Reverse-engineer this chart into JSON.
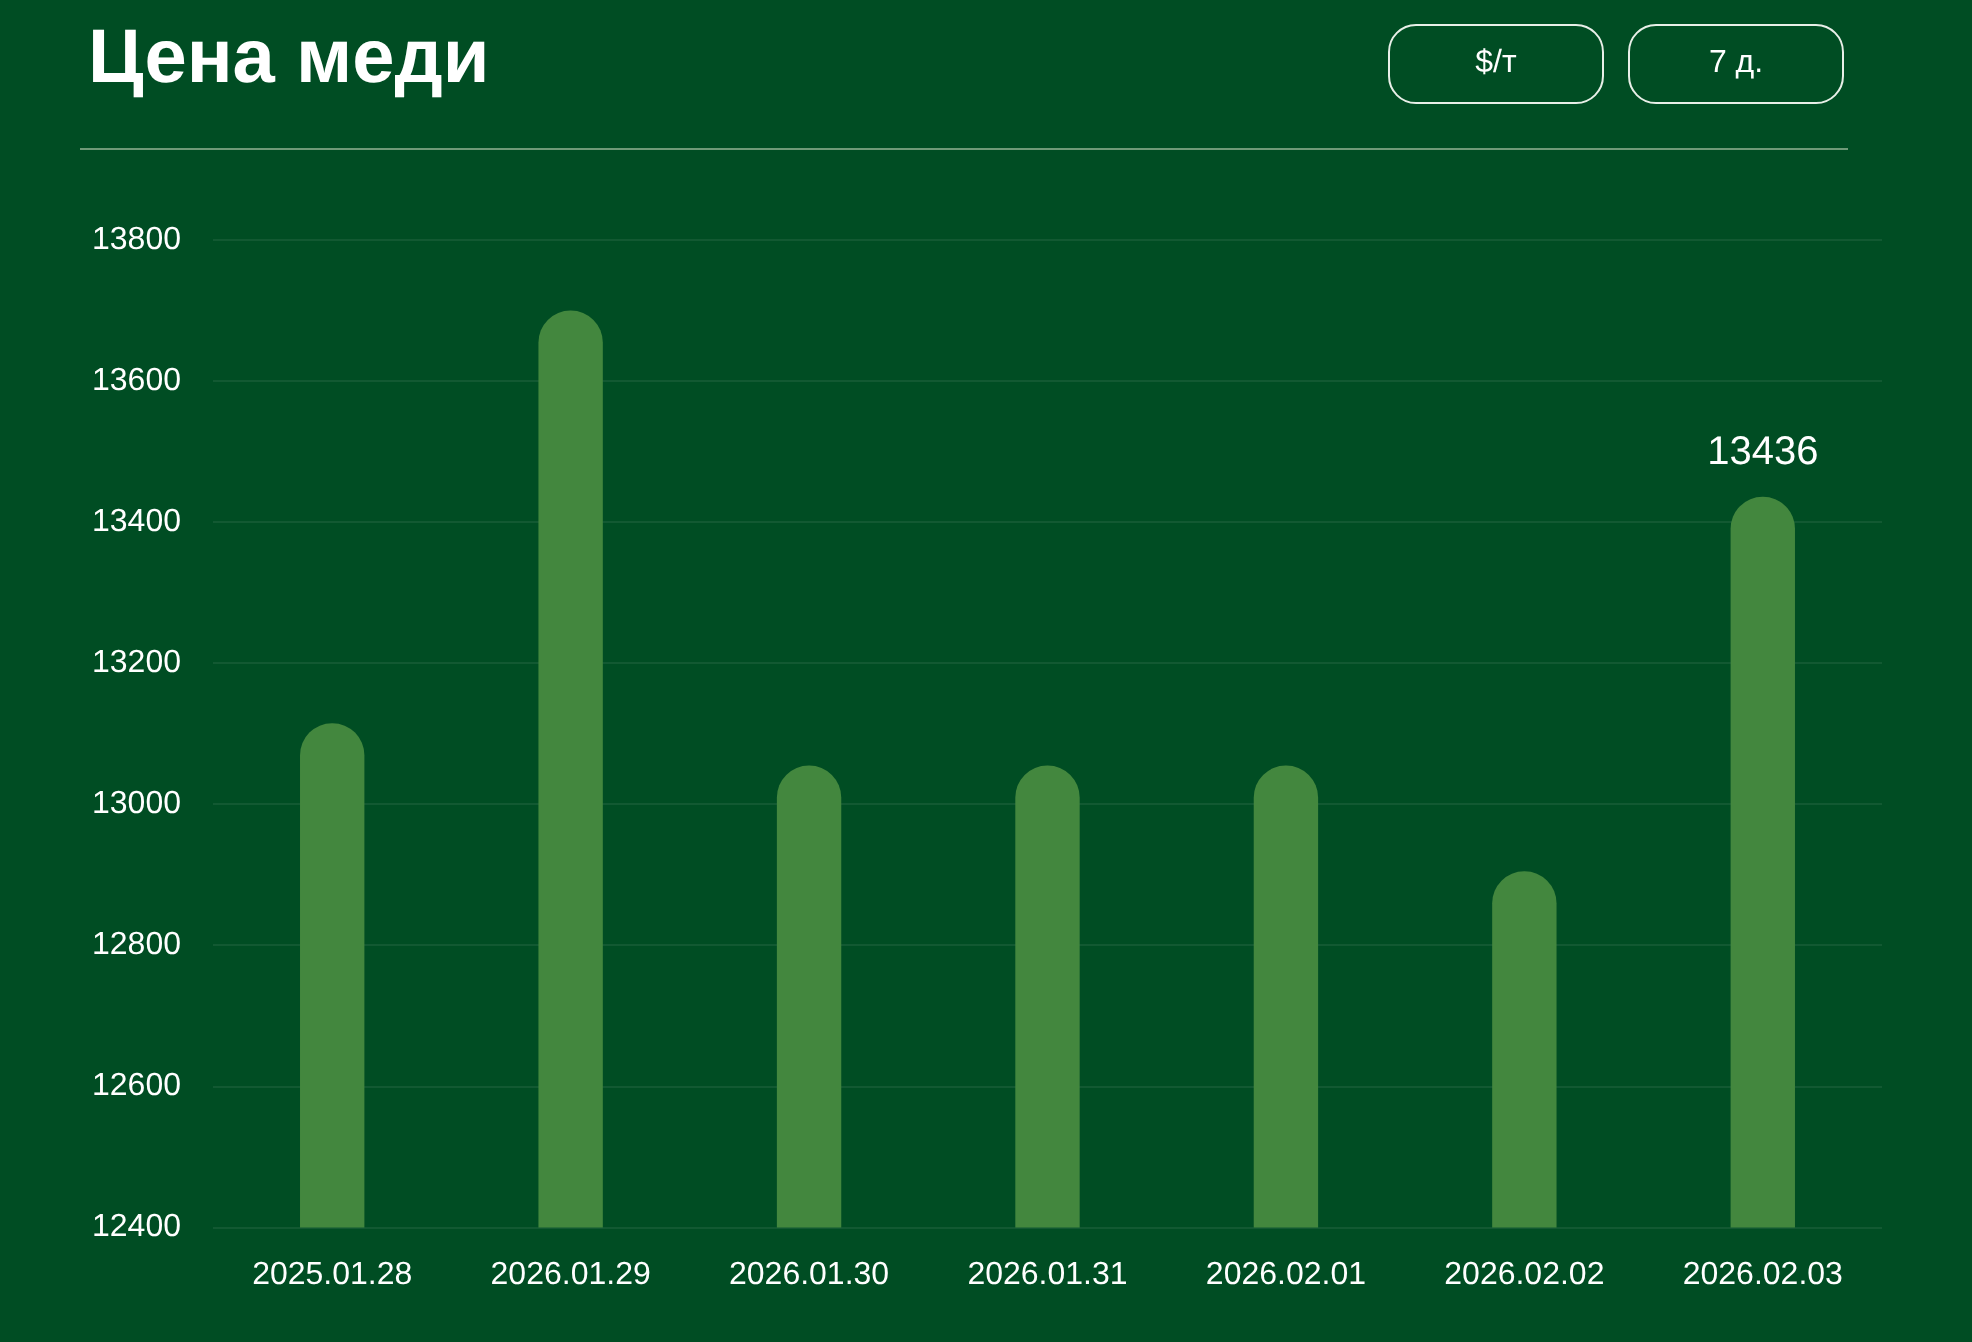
{
  "chart_data": {
    "type": "bar",
    "title": "Цена меди",
    "annotations": [
      "$/т",
      "7 д."
    ],
    "categories": [
      "2025.01.28",
      "2026.01.29",
      "2026.01.30",
      "2026.01.31",
      "2026.02.01",
      "2026.02.02",
      "2026.02.03"
    ],
    "values": [
      13115,
      13700,
      13055,
      13055,
      13055,
      12905,
      13436
    ],
    "value_labels": [
      null,
      null,
      null,
      null,
      null,
      null,
      "13436"
    ],
    "color": "#43873e",
    "ylim": [
      12400,
      13800
    ],
    "yticks": [
      12400,
      12600,
      12800,
      13000,
      13200,
      13400,
      13600,
      13800
    ],
    "grid": "y",
    "legend": false
  }
}
